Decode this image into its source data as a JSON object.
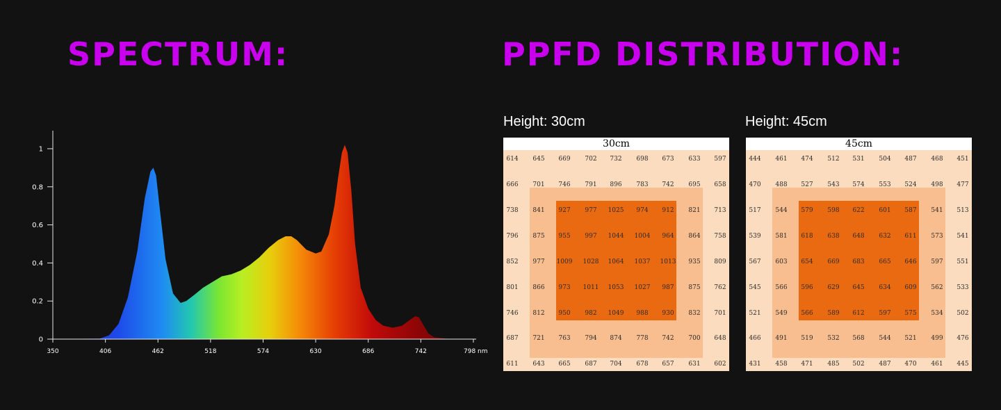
{
  "colors": {
    "heading": "#c800ee",
    "background": "#121212",
    "grid_outer": "#fcdcbe",
    "grid_mid": "#f8be90",
    "grid_core": "#ea6a12"
  },
  "spectrum": {
    "heading": "SPECTRUM:"
  },
  "ppfd": {
    "heading": "PPFD DISTRIBUTION:",
    "panels": [
      {
        "label": "Height: 30cm",
        "title": "30cm",
        "grid": [
          [
            614,
            645,
            669,
            702,
            732,
            698,
            673,
            633,
            597
          ],
          [
            666,
            701,
            746,
            791,
            896,
            783,
            742,
            695,
            658
          ],
          [
            738,
            841,
            927,
            977,
            1025,
            974,
            912,
            821,
            713
          ],
          [
            796,
            875,
            955,
            997,
            1044,
            1004,
            964,
            864,
            758
          ],
          [
            852,
            977,
            1009,
            1028,
            1064,
            1037,
            1013,
            935,
            809
          ],
          [
            801,
            866,
            973,
            1011,
            1053,
            1027,
            987,
            875,
            762
          ],
          [
            746,
            812,
            950,
            982,
            1049,
            988,
            930,
            832,
            701
          ],
          [
            687,
            721,
            763,
            794,
            874,
            778,
            742,
            700,
            648
          ],
          [
            611,
            643,
            665,
            687,
            704,
            678,
            657,
            631,
            602
          ]
        ]
      },
      {
        "label": "Height: 45cm",
        "title": "45cm",
        "grid": [
          [
            444,
            461,
            474,
            512,
            531,
            504,
            487,
            468,
            451
          ],
          [
            470,
            488,
            527,
            543,
            574,
            553,
            524,
            498,
            477
          ],
          [
            517,
            544,
            579,
            598,
            622,
            601,
            587,
            541,
            513
          ],
          [
            539,
            581,
            618,
            638,
            648,
            632,
            611,
            573,
            541
          ],
          [
            567,
            603,
            654,
            669,
            683,
            665,
            646,
            597,
            551
          ],
          [
            545,
            566,
            596,
            629,
            645,
            634,
            609,
            562,
            533
          ],
          [
            521,
            549,
            566,
            589,
            612,
            597,
            575,
            534,
            502
          ],
          [
            466,
            491,
            519,
            532,
            568,
            544,
            521,
            499,
            476
          ],
          [
            431,
            458,
            471,
            485,
            502,
            487,
            470,
            461,
            445
          ]
        ]
      }
    ]
  },
  "chart_data": {
    "type": "area",
    "title": "",
    "xlabel": "",
    "ylabel": "",
    "x_unit": "nm",
    "xlim": [
      350,
      798
    ],
    "ylim": [
      0,
      1.1
    ],
    "x_ticks": [
      350,
      406,
      462,
      518,
      574,
      630,
      686,
      742,
      798
    ],
    "y_ticks": [
      0,
      0.2,
      0.4,
      0.6,
      0.8,
      1
    ],
    "x": [
      350,
      400,
      410,
      420,
      430,
      440,
      448,
      454,
      457,
      460,
      464,
      470,
      478,
      486,
      492,
      500,
      510,
      520,
      530,
      540,
      550,
      560,
      570,
      580,
      590,
      598,
      604,
      610,
      620,
      630,
      636,
      644,
      650,
      654,
      658,
      661,
      664,
      668,
      672,
      678,
      686,
      694,
      702,
      712,
      722,
      730,
      736,
      740,
      744,
      750,
      756,
      770,
      798
    ],
    "y": [
      0,
      0.003,
      0.02,
      0.08,
      0.22,
      0.46,
      0.74,
      0.88,
      0.9,
      0.86,
      0.68,
      0.42,
      0.24,
      0.19,
      0.2,
      0.23,
      0.27,
      0.3,
      0.33,
      0.34,
      0.36,
      0.39,
      0.43,
      0.48,
      0.52,
      0.54,
      0.54,
      0.52,
      0.47,
      0.45,
      0.46,
      0.55,
      0.7,
      0.85,
      0.98,
      1.02,
      0.98,
      0.78,
      0.5,
      0.27,
      0.16,
      0.1,
      0.07,
      0.06,
      0.07,
      0.1,
      0.12,
      0.115,
      0.08,
      0.03,
      0.01,
      0.002,
      0
    ]
  }
}
